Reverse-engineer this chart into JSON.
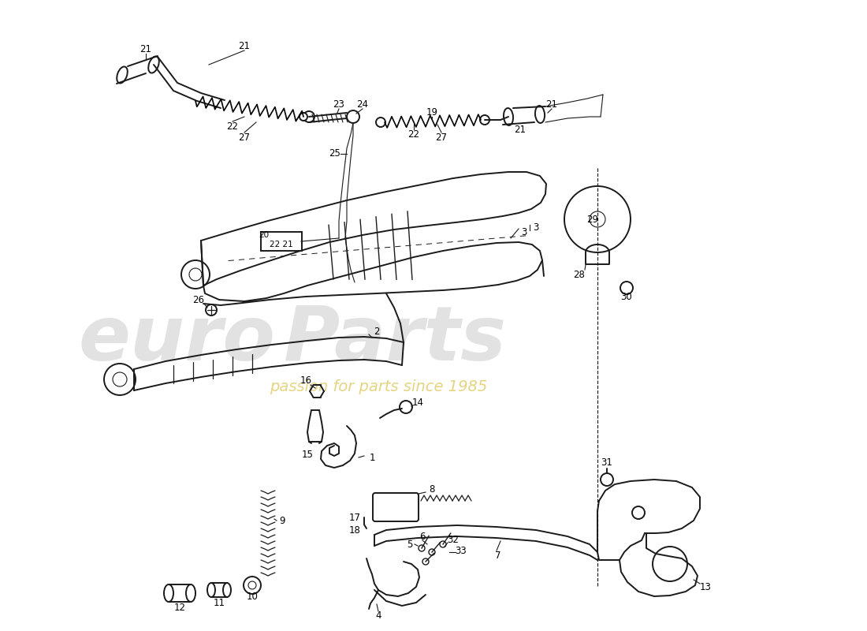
{
  "bg_color": "#ffffff",
  "line_color": "#1a1a1a",
  "fig_width": 11.0,
  "fig_height": 8.0,
  "dpi": 100,
  "watermark_main": "euroParts",
  "watermark_sub": "passion for parts since 1985",
  "wm_gray": "#c0c0c0",
  "wm_yellow": "#d4b830"
}
